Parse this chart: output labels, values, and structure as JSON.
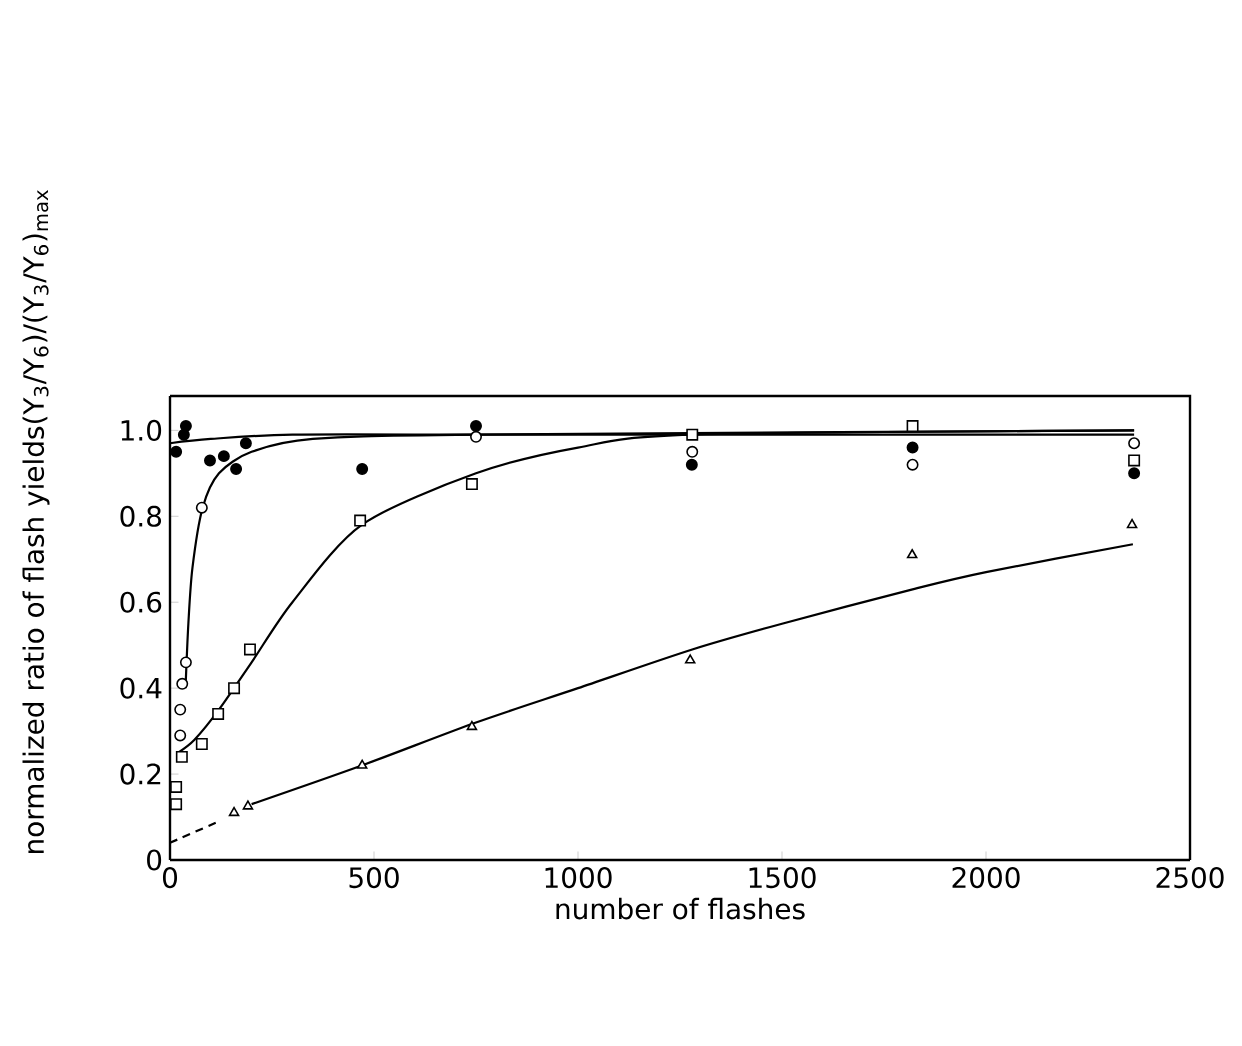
{
  "chart_data": {
    "type": "scatter",
    "xlabel": "number of flashes",
    "ylabel": "normalized ratio of flash yields(Y$_{3}$/Y$_{6}$)/(Y$_{3}$/Y$_{6}$)$_{max}$",
    "xlim": [
      0,
      2500
    ],
    "ylim": [
      0,
      1.08
    ],
    "xticks": [
      0,
      500,
      1000,
      1500,
      2000,
      2500
    ],
    "yticks": [
      0,
      0.2,
      0.4,
      0.6,
      0.8,
      {
        "value": 1.0,
        "label": "1.0"
      }
    ],
    "grid": false,
    "series": [
      {
        "marker": "circle",
        "color": "#000000",
        "x": [
          15,
          34,
          39,
          98,
          132,
          162,
          186,
          471,
          750,
          1279,
          1820,
          2363
        ],
        "values": [
          0.95,
          0.99,
          1.01,
          0.93,
          0.94,
          0.91,
          0.97,
          0.91,
          1.01,
          0.92,
          0.96,
          0.9
        ]
      },
      {
        "marker": "circle",
        "color": "#ffffff",
        "x": [
          25,
          25,
          30,
          39,
          78,
          750,
          1280,
          1820,
          2363
        ],
        "values": [
          0.29,
          0.35,
          0.41,
          0.46,
          0.82,
          0.985,
          0.95,
          0.92,
          0.97
        ]
      },
      {
        "marker": "square",
        "color": "#ffffff",
        "x": [
          15,
          15,
          29,
          78,
          118,
          157,
          196,
          466,
          740,
          1280,
          1820,
          2363
        ],
        "values": [
          0.13,
          0.17,
          0.24,
          0.27,
          0.34,
          0.4,
          0.49,
          0.79,
          0.875,
          0.99,
          1.01,
          0.93
        ]
      },
      {
        "marker": "triangle",
        "color": "#ffffff",
        "x": [
          157,
          191,
          471,
          740,
          1275,
          1819,
          2358
        ],
        "values": [
          0.11,
          0.125,
          0.22,
          0.31,
          0.465,
          0.71,
          0.78
        ]
      },
      {
        "type": "line",
        "color": "#000000",
        "line_style": "solid",
        "x": [
          0,
          100,
          300,
          750,
          1280,
          2363
        ],
        "values": [
          0.97,
          0.98,
          0.99,
          0.99,
          0.99,
          0.99
        ]
      },
      {
        "type": "line",
        "color": "#000000",
        "line_style": "solid",
        "x": [
          38,
          45,
          55,
          80,
          120,
          200,
          350,
          750,
          2363
        ],
        "values": [
          0.4,
          0.55,
          0.68,
          0.82,
          0.9,
          0.95,
          0.98,
          0.99,
          1.0
        ]
      },
      {
        "type": "line",
        "color": "#000000",
        "line_style": "solid",
        "x": [
          20,
          60,
          120,
          200,
          300,
          470,
          750,
          1000,
          1280,
          2363
        ],
        "values": [
          0.25,
          0.28,
          0.35,
          0.46,
          0.6,
          0.78,
          0.9,
          0.96,
          0.99,
          1.0
        ]
      },
      {
        "type": "line",
        "color": "#000000",
        "line_style": "dashed",
        "x": [
          0,
          120
        ],
        "values": [
          0.04,
          0.09
        ]
      },
      {
        "type": "line",
        "color": "#000000",
        "line_style": "solid",
        "x": [
          200,
          470,
          750,
          1000,
          1280,
          1500,
          1820,
          2000,
          2360
        ],
        "values": [
          0.13,
          0.22,
          0.32,
          0.4,
          0.49,
          0.55,
          0.63,
          0.67,
          0.735
        ]
      }
    ]
  }
}
